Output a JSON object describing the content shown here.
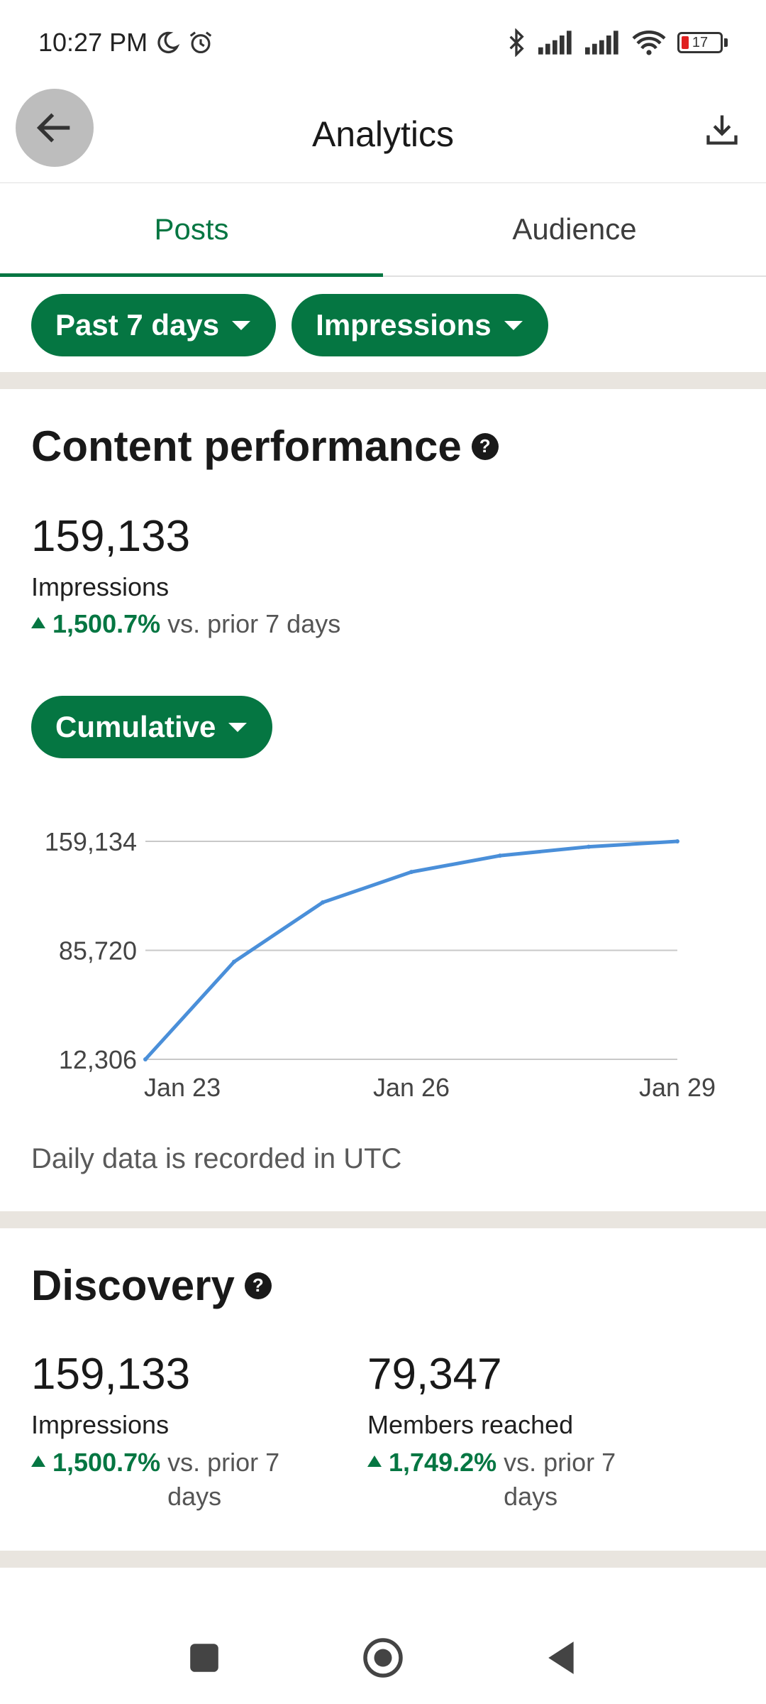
{
  "status_bar": {
    "time": "10:27 PM",
    "battery_level": "17",
    "icons": [
      "moon-icon",
      "alarm-icon",
      "bluetooth-icon",
      "signal-icon",
      "signal-icon",
      "wifi-icon",
      "battery-icon"
    ]
  },
  "header": {
    "title": "Analytics",
    "back_icon": "back-arrow-icon",
    "download_icon": "download-icon"
  },
  "tabs": [
    {
      "label": "Posts",
      "active": true
    },
    {
      "label": "Audience",
      "active": false
    }
  ],
  "filters": {
    "range": "Past 7 days",
    "metric": "Impressions"
  },
  "content_performance": {
    "title": "Content performance",
    "value": "159,133",
    "label": "Impressions",
    "change": "1,500.7%",
    "compare": "vs. prior 7 days",
    "mode": "Cumulative",
    "note": "Daily data is recorded in UTC"
  },
  "chart_data": {
    "type": "line",
    "x": [
      "Jan 23",
      "Jan 24",
      "Jan 25",
      "Jan 26",
      "Jan 27",
      "Jan 28",
      "Jan 29"
    ],
    "x_tick_labels": [
      "Jan 23",
      "Jan 26",
      "Jan 29"
    ],
    "y_tick_labels": [
      "159,134",
      "85,720",
      "12,306"
    ],
    "ylim": [
      12306,
      159134
    ],
    "series": [
      {
        "values": [
          12306,
          78000,
          118000,
          138500,
          149500,
          155500,
          159133
        ]
      }
    ],
    "color": "#4a8fd9",
    "grid": true
  },
  "discovery": {
    "title": "Discovery",
    "impressions": {
      "value": "159,133",
      "label": "Impressions",
      "change": "1,500.7%",
      "compare_line1": "vs. prior 7",
      "compare_line2": "days"
    },
    "members": {
      "value": "79,347",
      "label": "Members reached",
      "change": "1,749.2%",
      "compare_line1": "vs. prior 7",
      "compare_line2": "days"
    }
  },
  "colors": {
    "accent": "#057642",
    "divider": "#e9e5df"
  }
}
